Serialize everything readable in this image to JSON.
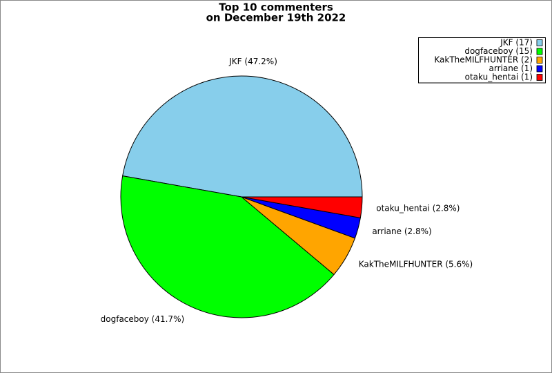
{
  "chart_data": {
    "type": "pie",
    "title": "Top 10 commenters",
    "subtitle": "on December 19th 2022",
    "categories": [
      "JKF",
      "dogfaceboy",
      "KakTheMILFHUNTER",
      "arriane",
      "otaku_hentai"
    ],
    "values": [
      17,
      15,
      2,
      1,
      1
    ],
    "slice_labels": [
      "JKF (47.2%)",
      "dogfaceboy (41.7%)",
      "KakTheMILFHUNTER (5.6%)",
      "arriane (2.8%)",
      "otaku_hentai (2.8%)"
    ],
    "legend_labels": [
      "JKF (17)",
      "dogfaceboy (15)",
      "KakTheMILFHUNTER (2)",
      "arriane (1)",
      "otaku_hentai (1)"
    ],
    "colors": [
      "#87ceeb",
      "#00ff00",
      "#ffa500",
      "#0000ff",
      "#ff0000"
    ],
    "start_angle": 0,
    "direction": "counterclockwise",
    "legend": "upper right"
  }
}
